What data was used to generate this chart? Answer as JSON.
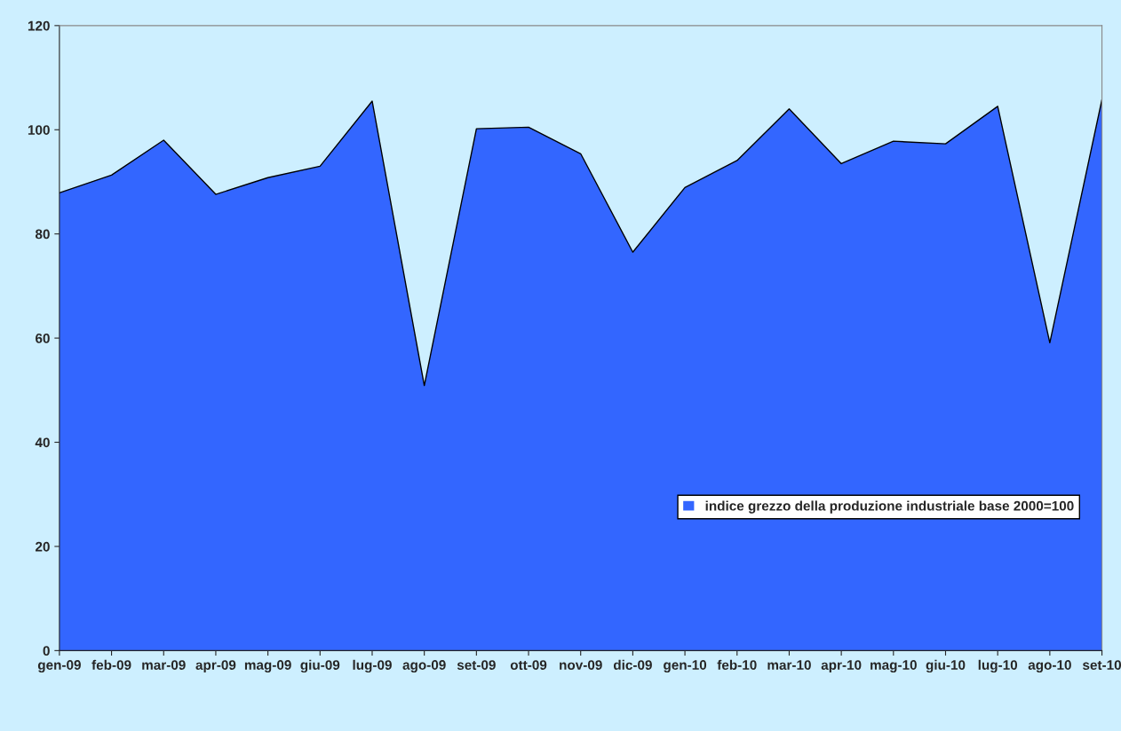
{
  "chart_data": {
    "type": "area",
    "categories": [
      "gen-09",
      "feb-09",
      "mar-09",
      "apr-09",
      "mag-09",
      "giu-09",
      "lug-09",
      "ago-09",
      "set-09",
      "ott-09",
      "nov-09",
      "dic-09",
      "gen-10",
      "feb-10",
      "mar-10",
      "apr-10",
      "mag-10",
      "giu-10",
      "lug-10",
      "ago-10",
      "set-10"
    ],
    "series": [
      {
        "name": "indice grezzo della produzione industriale base 2000=100",
        "color": "#3366ff",
        "values": [
          87.9,
          91.3,
          98.0,
          87.6,
          90.8,
          93.0,
          105.5,
          50.9,
          100.2,
          100.5,
          95.4,
          76.5,
          88.9,
          94.1,
          104.0,
          93.5,
          97.8,
          97.3,
          104.5,
          59.1,
          105.8
        ]
      }
    ],
    "ylim": [
      0,
      120
    ],
    "yticks": [
      0,
      20,
      40,
      60,
      80,
      100,
      120
    ],
    "grid": false,
    "legend": "bottom right"
  }
}
